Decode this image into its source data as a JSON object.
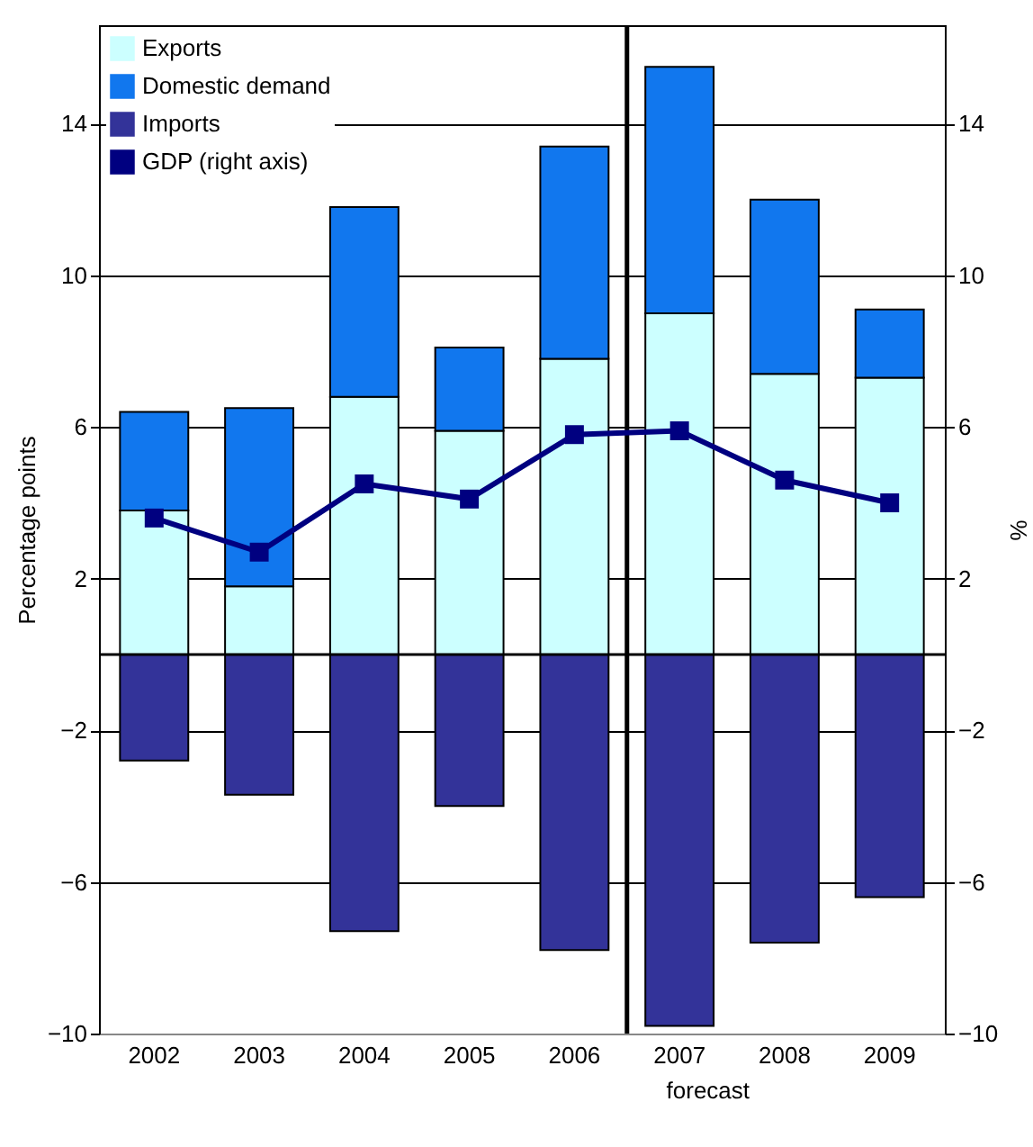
{
  "chart_data": {
    "type": "bar",
    "stacked": true,
    "ylabel": "Percentage points",
    "y2label": "%",
    "categories": [
      "2002",
      "2003",
      "2004",
      "2005",
      "2006",
      "2007",
      "2008",
      "2009"
    ],
    "series": [
      {
        "name": "Exports",
        "color": "#ccffff",
        "values": [
          3.8,
          1.8,
          6.8,
          5.9,
          7.8,
          9.0,
          7.4,
          7.3
        ]
      },
      {
        "name": "Domestic demand",
        "color": "#1177ee",
        "values": [
          2.6,
          4.7,
          5.0,
          2.2,
          5.6,
          6.5,
          4.6,
          1.8
        ]
      },
      {
        "name": "Imports",
        "color": "#333399",
        "values": [
          -2.8,
          -3.7,
          -7.3,
          -4.0,
          -7.8,
          -9.8,
          -7.6,
          -6.4
        ]
      },
      {
        "name": "GDP (right axis)",
        "type": "line",
        "axis": "y2",
        "color": "#000080",
        "values": [
          3.6,
          2.7,
          4.5,
          4.1,
          5.8,
          5.9,
          4.6,
          4.0
        ]
      }
    ],
    "ylim": [
      -10,
      16.6
    ],
    "yticks": [
      -10,
      -6,
      -2,
      2,
      6,
      10,
      14
    ],
    "y2lim": [
      -10,
      16.6
    ],
    "y2ticks": [
      -10,
      -6,
      -2,
      2,
      6,
      10,
      14
    ],
    "grid": "y",
    "legend": "top left",
    "marker": "square",
    "ref_lines": [
      {
        "axis": "y",
        "value": 0,
        "color": "#000000"
      },
      {
        "axis": "x",
        "value": "2007",
        "color": "#000000"
      }
    ],
    "annotations": [
      "forecast"
    ]
  }
}
